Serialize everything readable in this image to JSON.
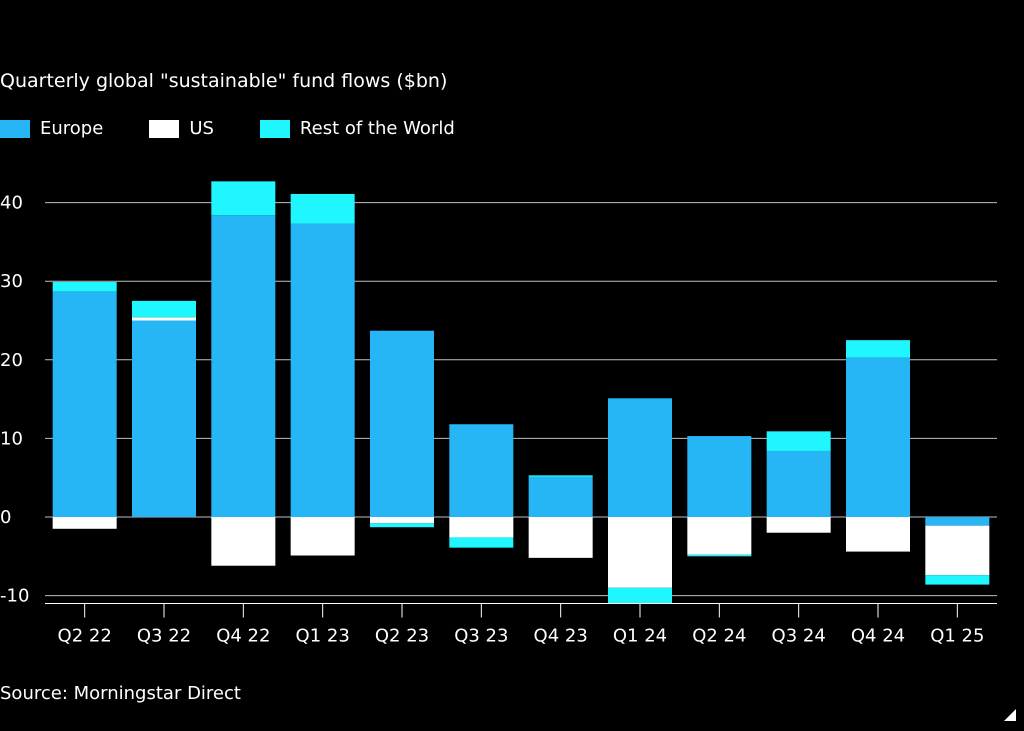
{
  "chart_data": {
    "type": "bar",
    "stacked": true,
    "title": "Quarterly global \"sustainable\" fund flows ($bn)",
    "source": "Source: Morningstar Direct",
    "categories": [
      "Q2 22",
      "Q3 22",
      "Q4 22",
      "Q1 23",
      "Q2 23",
      "Q3 23",
      "Q4 23",
      "Q1 24",
      "Q2 24",
      "Q3 24",
      "Q4 24",
      "Q1 25"
    ],
    "series": [
      {
        "name": "Europe",
        "color": "#26b6f5",
        "values": [
          28.7,
          25.0,
          38.4,
          37.3,
          23.7,
          11.8,
          5.1,
          15.1,
          10.3,
          8.4,
          20.3,
          -1.1
        ]
      },
      {
        "name": "US",
        "color": "#ffffff",
        "values": [
          -1.5,
          0.4,
          -6.2,
          -4.9,
          -0.8,
          -2.6,
          -5.2,
          -9.0,
          -4.8,
          -2.0,
          -4.4,
          -6.3
        ]
      },
      {
        "name": "Rest of the World",
        "color": "#1ff6ff",
        "values": [
          1.2,
          2.1,
          4.3,
          3.8,
          -0.5,
          -1.3,
          0.2,
          -2.0,
          -0.2,
          2.5,
          2.2,
          -1.2
        ]
      }
    ],
    "yticks": [
      -10,
      0,
      10,
      20,
      30,
      40
    ],
    "ylim": [
      -11,
      45
    ],
    "grid": true,
    "legend_position": "top-left"
  }
}
